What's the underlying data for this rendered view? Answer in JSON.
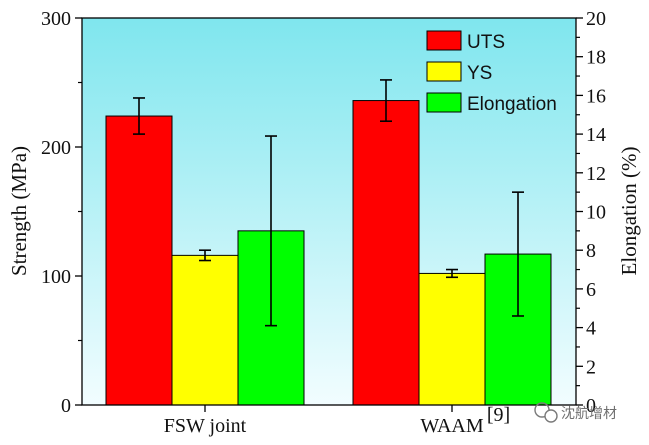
{
  "chart_data": {
    "type": "bar",
    "categories": [
      "FSW joint",
      "WAAM"
    ],
    "category_superscripts": [
      "",
      "[9]"
    ],
    "ylabel": "Strength (MPa)",
    "ylabel_right": "Elongation (%)",
    "ylim": [
      0,
      300
    ],
    "yticks": [
      0,
      100,
      200,
      300
    ],
    "ylim_right": [
      0,
      20
    ],
    "yticks_right": [
      0,
      2,
      4,
      6,
      8,
      10,
      12,
      14,
      16,
      18,
      20
    ],
    "series": [
      {
        "name": "UTS",
        "axis": "left",
        "values": [
          224,
          236
        ],
        "errors": [
          14,
          16
        ],
        "color": "#ff0000"
      },
      {
        "name": "YS",
        "axis": "left",
        "values": [
          116,
          102
        ],
        "errors": [
          4,
          3
        ],
        "color": "#ffff00"
      },
      {
        "name": "Elongation",
        "axis": "right",
        "values": [
          9.0,
          7.8
        ],
        "errors": [
          4.9,
          3.2
        ],
        "color": "#00ff00"
      }
    ],
    "legend_position": "top-right",
    "background_gradient": [
      "#7fe6ee",
      "#f2fdff"
    ]
  },
  "watermark": {
    "text": "沈航增材",
    "icon": "wechat-icon"
  }
}
